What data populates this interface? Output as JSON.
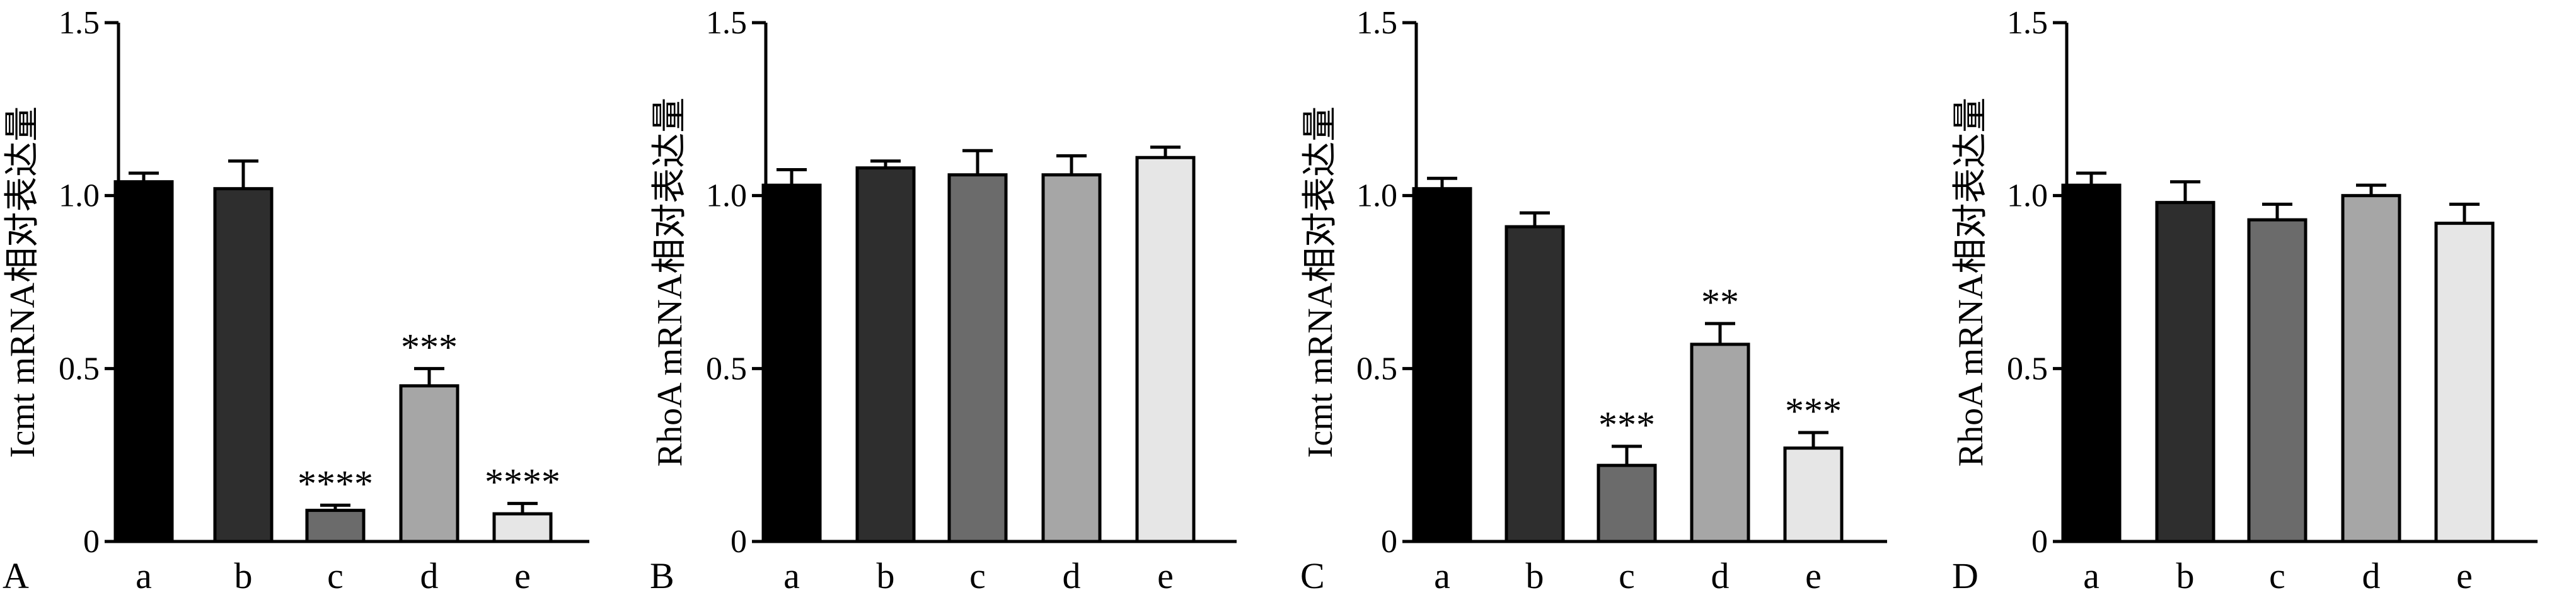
{
  "panels": [
    {
      "letter": "A",
      "chart_data": {
        "type": "bar",
        "title": "",
        "xlabel": "",
        "ylabel": "Icmt mRNA相对表达量",
        "ylim": [
          0,
          1.5
        ],
        "yticks": [
          "0",
          "0.5",
          "1.0",
          "1.5"
        ],
        "categories": [
          "a",
          "b",
          "c",
          "d",
          "e"
        ],
        "values": [
          1.04,
          1.02,
          0.09,
          0.45,
          0.08
        ],
        "errors": [
          0.025,
          0.08,
          0.015,
          0.05,
          0.03
        ],
        "significance": [
          "",
          "",
          "****",
          "***",
          "****"
        ],
        "colors": [
          "#000000",
          "#2e2e2e",
          "#6b6b6b",
          "#a6a6a6",
          "#e6e6e6"
        ],
        "grid": false
      }
    },
    {
      "letter": "B",
      "chart_data": {
        "type": "bar",
        "title": "",
        "xlabel": "",
        "ylabel": "RhoA mRNA相对表达量",
        "ylim": [
          0,
          1.5
        ],
        "yticks": [
          "0",
          "0.5",
          "1.0",
          "1.5"
        ],
        "categories": [
          "a",
          "b",
          "c",
          "d",
          "e"
        ],
        "values": [
          1.03,
          1.08,
          1.06,
          1.06,
          1.11
        ],
        "errors": [
          0.045,
          0.02,
          0.07,
          0.055,
          0.03
        ],
        "significance": [
          "",
          "",
          "",
          "",
          ""
        ],
        "colors": [
          "#000000",
          "#2e2e2e",
          "#6b6b6b",
          "#a6a6a6",
          "#e6e6e6"
        ],
        "grid": false
      }
    },
    {
      "letter": "C",
      "chart_data": {
        "type": "bar",
        "title": "",
        "xlabel": "",
        "ylabel": "Icmt mRNA相对表达量",
        "ylim": [
          0,
          1.5
        ],
        "yticks": [
          "0",
          "0.5",
          "1.0",
          "1.5"
        ],
        "categories": [
          "a",
          "b",
          "c",
          "d",
          "e"
        ],
        "values": [
          1.02,
          0.91,
          0.22,
          0.57,
          0.27
        ],
        "errors": [
          0.03,
          0.04,
          0.055,
          0.06,
          0.045
        ],
        "significance": [
          "",
          "",
          "***",
          "**",
          "***"
        ],
        "colors": [
          "#000000",
          "#2e2e2e",
          "#6b6b6b",
          "#a6a6a6",
          "#e6e6e6"
        ],
        "grid": false
      }
    },
    {
      "letter": "D",
      "chart_data": {
        "type": "bar",
        "title": "",
        "xlabel": "",
        "ylabel": "RhoA mRNA相对表达量",
        "ylim": [
          0,
          1.5
        ],
        "yticks": [
          "0",
          "0.5",
          "1.0",
          "1.5"
        ],
        "categories": [
          "a",
          "b",
          "c",
          "d",
          "e"
        ],
        "values": [
          1.03,
          0.98,
          0.93,
          1.0,
          0.92
        ],
        "errors": [
          0.035,
          0.06,
          0.045,
          0.03,
          0.055
        ],
        "significance": [
          "",
          "",
          "",
          "",
          ""
        ],
        "colors": [
          "#000000",
          "#2e2e2e",
          "#6b6b6b",
          "#a6a6a6",
          "#e6e6e6"
        ],
        "grid": false
      }
    }
  ]
}
